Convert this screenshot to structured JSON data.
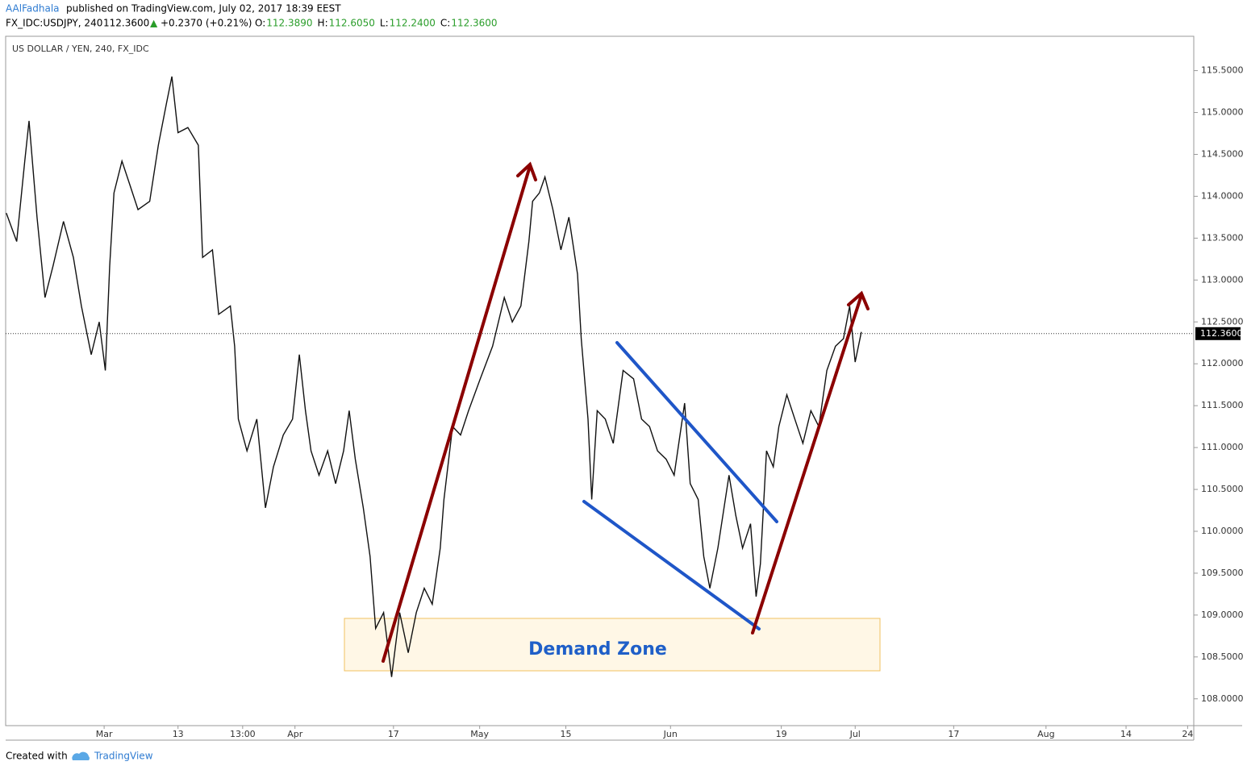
{
  "header": {
    "author": "AAlFadhala",
    "published": "published on TradingView.com, July 02, 2017 18:39 EEST",
    "symbol": "FX_IDC:USDJPY, 240",
    "price": "112.3600",
    "change": "+0.2370 (+0.21%)",
    "ohlc": [
      {
        "label": "O:",
        "value": "112.3890"
      },
      {
        "label": "H:",
        "value": "112.6050"
      },
      {
        "label": "L:",
        "value": "112.2400"
      },
      {
        "label": "C:",
        "value": "112.3600"
      }
    ]
  },
  "chart_data": {
    "type": "line",
    "title": "US DOLLAR / YEN, 240, FX_IDC",
    "color": "#111111",
    "x": [
      44.1,
      45.8,
      47.1,
      47.8,
      49.1,
      50.4,
      51.7,
      53.4,
      55.0,
      56.3,
      57.9,
      59.2,
      60.2,
      60.9,
      61.6,
      62.9,
      64.2,
      65.5,
      67.4,
      68.8,
      70.1,
      71.0,
      72.0,
      73.6,
      75.3,
      76.0,
      77.6,
      78.6,
      80.5,
      81.2,
      81.8,
      83.2,
      84.8,
      86.2,
      87.5,
      89.1,
      90.6,
      91.7,
      92.7,
      93.6,
      94.9,
      96.3,
      97.6,
      98.9,
      99.8,
      100.8,
      102.1,
      103.2,
      104.1,
      105.4,
      106.7,
      108.0,
      109.4,
      110.7,
      112.0,
      113.3,
      114.6,
      115.2,
      116.6,
      117.9,
      119.2,
      121.1,
      123.1,
      125.0,
      126.3,
      127.7,
      129.0,
      129.6,
      130.7,
      131.6,
      132.9,
      134.2,
      135.5,
      136.9,
      137.5,
      138.6,
      139.2,
      140.1,
      141.4,
      142.7,
      144.3,
      146.0,
      147.3,
      148.6,
      149.9,
      151.3,
      152.6,
      154.3,
      155.2,
      156.5,
      157.4,
      158.4,
      159.7,
      161.5,
      162.6,
      163.7,
      165.0,
      165.9,
      166.6,
      167.6,
      168.7,
      169.6,
      170.9,
      172.2,
      173.5,
      174.8,
      176.1,
      177.4,
      178.8,
      180.1,
      181.1,
      182.0,
      183.0
    ],
    "values": [
      113.8,
      113.46,
      114.42,
      114.9,
      113.75,
      112.79,
      113.17,
      113.7,
      113.27,
      112.69,
      112.11,
      112.5,
      111.92,
      113.17,
      114.04,
      114.42,
      114.13,
      113.84,
      113.94,
      114.61,
      115.1,
      115.43,
      114.76,
      114.82,
      114.61,
      113.27,
      113.36,
      112.59,
      112.69,
      112.21,
      111.34,
      110.96,
      111.34,
      110.28,
      110.77,
      111.15,
      111.34,
      112.11,
      111.44,
      110.96,
      110.67,
      110.96,
      110.57,
      110.96,
      111.44,
      110.86,
      110.28,
      109.7,
      108.84,
      109.03,
      108.26,
      109.03,
      108.55,
      109.03,
      109.32,
      109.13,
      109.8,
      110.38,
      111.25,
      111.15,
      111.44,
      111.82,
      112.21,
      112.79,
      112.5,
      112.69,
      113.46,
      113.94,
      114.04,
      114.23,
      113.84,
      113.36,
      113.75,
      113.07,
      112.3,
      111.34,
      110.38,
      111.44,
      111.34,
      111.05,
      111.92,
      111.82,
      111.34,
      111.25,
      110.96,
      110.86,
      110.67,
      111.53,
      110.57,
      110.38,
      109.7,
      109.32,
      109.8,
      110.67,
      110.19,
      109.8,
      110.09,
      109.22,
      109.61,
      110.96,
      110.77,
      111.25,
      111.63,
      111.34,
      111.05,
      111.44,
      111.25,
      111.92,
      112.21,
      112.3,
      112.69,
      112.02,
      112.38
    ],
    "xlim": [
      44,
      237
    ],
    "xticks": [
      {
        "value": 60,
        "label": "Mar"
      },
      {
        "value": 72,
        "label": "13"
      },
      {
        "value": 82.5,
        "label": "13:00"
      },
      {
        "value": 91,
        "label": "Apr"
      },
      {
        "value": 107,
        "label": "17"
      },
      {
        "value": 121,
        "label": "May"
      },
      {
        "value": 135,
        "label": "15"
      },
      {
        "value": 152,
        "label": "Jun"
      },
      {
        "value": 170,
        "label": "19"
      },
      {
        "value": 182,
        "label": "Jul"
      },
      {
        "value": 198,
        "label": "17"
      },
      {
        "value": 213,
        "label": "Aug"
      },
      {
        "value": 226,
        "label": "14"
      },
      {
        "value": 236,
        "label": "24"
      }
    ],
    "ylim": [
      107.68,
      115.91
    ],
    "yticks": [
      {
        "value": 108,
        "label": "108.0000"
      },
      {
        "value": 108.5,
        "label": "108.5000"
      },
      {
        "value": 109,
        "label": "109.0000"
      },
      {
        "value": 109.5,
        "label": "109.5000"
      },
      {
        "value": 110,
        "label": "110.0000"
      },
      {
        "value": 110.5,
        "label": "110.5000"
      },
      {
        "value": 111,
        "label": "111.0000"
      },
      {
        "value": 111.5,
        "label": "111.5000"
      },
      {
        "value": 112,
        "label": "112.0000"
      },
      {
        "value": 112.5,
        "label": "112.5000"
      },
      {
        "value": 113,
        "label": "113.0000"
      },
      {
        "value": 113.5,
        "label": "113.5000"
      },
      {
        "value": 114,
        "label": "114.0000"
      },
      {
        "value": 114.5,
        "label": "114.5000"
      },
      {
        "value": 115,
        "label": "115.0000"
      },
      {
        "value": 115.5,
        "label": "115.5000"
      }
    ],
    "last_price": {
      "value": 112.36,
      "label": "112.3600"
    },
    "annotation": "Demand Zone"
  },
  "footer": {
    "created": "Created with",
    "brand": "TradingView"
  }
}
